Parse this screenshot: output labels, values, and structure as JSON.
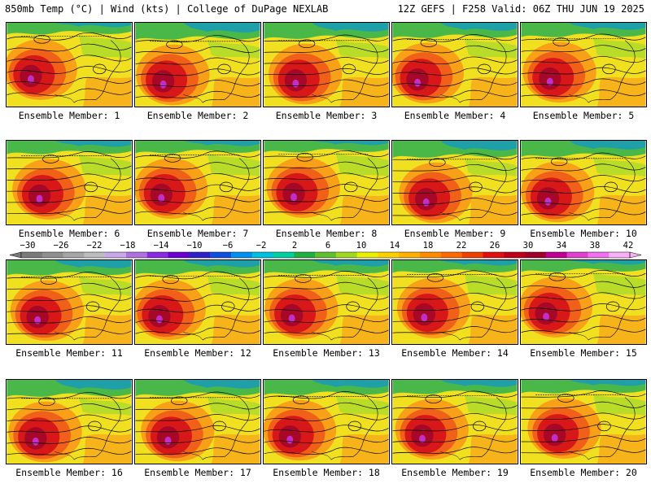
{
  "header": {
    "left": "850mb Temp (°C) | Wind (kts) | College of DuPage NEXLAB",
    "right": "12Z GEFS | F258 Valid: 06Z THU JUN 19 2025"
  },
  "panels": [
    {
      "label": "Ensemble Member: 1"
    },
    {
      "label": "Ensemble Member: 2"
    },
    {
      "label": "Ensemble Member: 3"
    },
    {
      "label": "Ensemble Member: 4"
    },
    {
      "label": "Ensemble Member: 5"
    },
    {
      "label": "Ensemble Member: 6"
    },
    {
      "label": "Ensemble Member: 7"
    },
    {
      "label": "Ensemble Member: 8"
    },
    {
      "label": "Ensemble Member: 9"
    },
    {
      "label": "Ensemble Member: 10"
    },
    {
      "label": "Ensemble Member: 11"
    },
    {
      "label": "Ensemble Member: 12"
    },
    {
      "label": "Ensemble Member: 13"
    },
    {
      "label": "Ensemble Member: 14"
    },
    {
      "label": "Ensemble Member: 15"
    },
    {
      "label": "Ensemble Member: 16"
    },
    {
      "label": "Ensemble Member: 17"
    },
    {
      "label": "Ensemble Member: 18"
    },
    {
      "label": "Ensemble Member: 19"
    },
    {
      "label": "Ensemble Member: 20"
    }
  ],
  "colorbar": {
    "tick_labels": [
      "−30",
      "−26",
      "−22",
      "−18",
      "−14",
      "−10",
      "−6",
      "−2",
      "2",
      "6",
      "10",
      "14",
      "18",
      "22",
      "26",
      "30",
      "34",
      "38",
      "42"
    ],
    "colors": [
      "#7a7a7a",
      "#8f8f8f",
      "#a6a6a6",
      "#bdbdbd",
      "#c8a8e8",
      "#b070e0",
      "#8a2be2",
      "#6a00d0",
      "#3020c8",
      "#1050e0",
      "#0090f0",
      "#00c0e0",
      "#00d0a0",
      "#20b040",
      "#60c030",
      "#a0d820",
      "#e8f000",
      "#ffd000",
      "#ffb000",
      "#ff8c00",
      "#ff6a00",
      "#f04000",
      "#e01010",
      "#c00018",
      "#a00028",
      "#c00090",
      "#e040d0",
      "#f070f0",
      "#f8b0f8"
    ]
  },
  "map_colors": {
    "cold": "#1fa0a8",
    "cool": "#4ab848",
    "mild": "#b8dc28",
    "warm": "#f0e020",
    "hot": "#f8a018",
    "hotter": "#f06018",
    "hottest": "#d81818",
    "extreme": "#a80828",
    "magenta": "#c030c8",
    "contour": "#000000"
  }
}
